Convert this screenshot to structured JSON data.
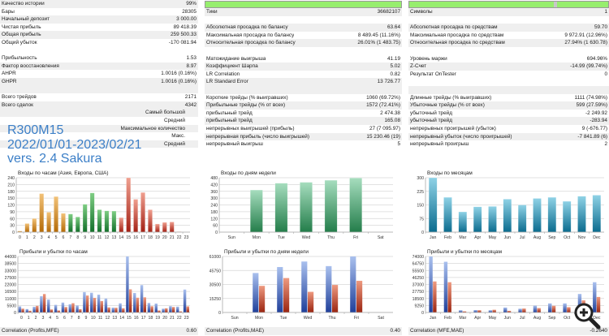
{
  "col1": {
    "rows_top": [
      {
        "label": "Качество истории",
        "value": "99%"
      },
      {
        "label": "Бары",
        "value": "28305"
      },
      {
        "label": "Начальный депозит",
        "value": "3 000.00"
      },
      {
        "label": "Чистая прибыль",
        "value": "89 418.39"
      },
      {
        "label": "Общая прибыль",
        "value": "259 500.33"
      },
      {
        "label": "Общий убыток",
        "value": "-170 081.94"
      }
    ],
    "rows_mid": [
      {
        "label": "Прибыльность",
        "value": "1.53"
      },
      {
        "label": "Фактор восстановления",
        "value": "8.97"
      },
      {
        "label": "AHPR",
        "value": "1.0016 (0.16%)"
      },
      {
        "label": "GHPR",
        "value": "1.0016 (0.16%)"
      }
    ],
    "rows_trades": [
      {
        "label": "Всего трейдов",
        "value": "2171"
      },
      {
        "label": "Всего сделок",
        "value": "4342"
      }
    ],
    "rows_right": [
      {
        "label": "Самый большой",
        "value": ""
      },
      {
        "label": "Средний",
        "value": ""
      },
      {
        "label": "Максимальное количество",
        "value": ""
      },
      {
        "label": "Макс.",
        "value": ""
      },
      {
        "label": "Средний",
        "value": ""
      }
    ]
  },
  "col2": {
    "history_quality_progress": 1.0,
    "rows_top": [
      {
        "label": "Тики",
        "value": "36682107"
      }
    ],
    "rows_dd": [
      {
        "label": "Абсолютная просадка по балансу",
        "value": "63.64"
      },
      {
        "label": "Максимальная просадка по балансу",
        "value": "8 489.45 (11.16%)"
      },
      {
        "label": "Относительная просадка по балансу",
        "value": "26.01% (1 483.75)"
      }
    ],
    "rows_mid": [
      {
        "label": "Матожидание выигрыша",
        "value": "41.19"
      },
      {
        "label": "Коэффициент Шарпа",
        "value": "5.02"
      },
      {
        "label": "LR Correlation",
        "value": "0.82"
      },
      {
        "label": "LR Standard Error",
        "value": "13 726.77"
      }
    ],
    "rows_trades": [
      {
        "label": "Короткие трейды (% выигравших)",
        "value": "1060 (69.72%)"
      },
      {
        "label": "Прибыльные трейды (% от всех)",
        "value": "1572 (72.41%)"
      },
      {
        "label": "прибыльный трейд",
        "value": "2 474.38"
      },
      {
        "label": "прибыльный трейд",
        "value": "165.08"
      },
      {
        "label": "непрерывных выигрышей (прибыль)",
        "value": "27 (7 095.97)"
      },
      {
        "label": "непрерывная прибыль (число выигрышей)",
        "value": "15 230.46 (19)"
      },
      {
        "label": "непрерывный выигрыш",
        "value": "5"
      }
    ]
  },
  "col3": {
    "rows_top": [
      {
        "label": "Символы",
        "value": "1"
      }
    ],
    "rows_dd": [
      {
        "label": "Абсолютная просадка по средствам",
        "value": "59.70"
      },
      {
        "label": "Максимальная просадка по средствам",
        "value": "9 972.91 (12.96%)"
      },
      {
        "label": "Относительная просадка по средствам",
        "value": "27.94% (1 630.78)"
      }
    ],
    "rows_mid": [
      {
        "label": "Уровень маржи",
        "value": "694.96%"
      },
      {
        "label": "Z-Счет",
        "value": "-14.99 (99.74%)"
      },
      {
        "label": "Результат OnTester",
        "value": "0"
      }
    ],
    "rows_trades": [
      {
        "label": "Длинные трейды (% выигравших)",
        "value": "1111 (74.98%)"
      },
      {
        "label": "Убыточные трейды (% от всех)",
        "value": "599 (27.59%)"
      },
      {
        "label": "убыточный трейд",
        "value": "-2 249.92"
      },
      {
        "label": "убыточный трейд",
        "value": "-283.94"
      },
      {
        "label": "непрерывных проигрышей (убыток)",
        "value": "9 (-676.77)"
      },
      {
        "label": "непрерывный убыток (число проигрышей)",
        "value": "-7 841.89 (6)"
      },
      {
        "label": "непрерывный проигрыш",
        "value": "2"
      }
    ]
  },
  "overlay": {
    "line1": "R300M15",
    "line2": "2022/01/01-2023/02/21",
    "line3": "vers. 2.4 Sakura"
  },
  "bottom": {
    "corr_profits_mfe_label": "Correlation (Profits,MFE)",
    "corr_profits_mfe_value": "0.60",
    "corr_profits_mae_label": "Correlation (Profits,MAE)",
    "corr_profits_mae_value": "0.40",
    "corr_mfe_mae_label": "Correlation (MFE,MAE)",
    "corr_mfe_mae_value": "-0.2640"
  },
  "colors": {
    "asia": "#d98c1c",
    "europe": "#2f9a3c",
    "usa": "#c0392b",
    "weekday": "#3aa56a",
    "month": "#2a8cb0",
    "profit": "#3a64c0",
    "loss": "#c0402a",
    "progress": "#97ee6e",
    "overlay_text": "#3c7fc7"
  },
  "chart_data": [
    {
      "type": "bar",
      "id": "entries-hours",
      "title": "Входы по часам (Азия, Европа, США)",
      "categories": [
        "0",
        "1",
        "2",
        "3",
        "4",
        "5",
        "6",
        "7",
        "8",
        "9",
        "10",
        "11",
        "12",
        "13",
        "14",
        "15",
        "16",
        "17",
        "18",
        "19",
        "20",
        "21",
        "22",
        "23"
      ],
      "values": [
        5,
        38,
        60,
        170,
        88,
        157,
        83,
        80,
        67,
        123,
        173,
        99,
        94,
        93,
        64,
        240,
        145,
        175,
        99,
        36,
        43,
        45,
        2,
        0
      ],
      "groups": [
        "asia",
        "asia",
        "asia",
        "asia",
        "asia",
        "asia",
        "asia",
        "europe",
        "europe",
        "europe",
        "europe",
        "europe",
        "europe",
        "europe",
        "usa",
        "usa",
        "usa",
        "usa",
        "usa",
        "usa",
        "usa",
        "usa",
        "usa",
        "usa"
      ],
      "yticks": [
        0,
        30,
        60,
        90,
        120,
        150,
        180,
        210,
        240
      ],
      "ylim": [
        0,
        240
      ]
    },
    {
      "type": "bar",
      "id": "entries-weekdays",
      "title": "Входы по дням недели",
      "categories": [
        "Sun",
        "Mon",
        "Tue",
        "Wed",
        "Thu",
        "Fri",
        "Sat"
      ],
      "values": [
        0,
        372,
        432,
        440,
        458,
        478,
        0
      ],
      "yticks": [
        0,
        60,
        120,
        180,
        240,
        300,
        360,
        420,
        480
      ],
      "ylim": [
        0,
        480
      ]
    },
    {
      "type": "bar",
      "id": "entries-months",
      "title": "Входы по месяцам",
      "categories": [
        "Jan",
        "Feb",
        "Mar",
        "Apr",
        "May",
        "Jun",
        "Jul",
        "Aug",
        "Sep",
        "Oct",
        "Nov",
        "Dec"
      ],
      "values": [
        300,
        192,
        112,
        140,
        142,
        182,
        150,
        186,
        192,
        170,
        198,
        204
      ],
      "yticks": [
        0,
        75,
        150,
        225,
        300
      ],
      "ylim": [
        0,
        300
      ]
    },
    {
      "type": "bar",
      "id": "pl-hours",
      "title": "Прибыли и убытки по часам",
      "categories": [
        "0",
        "1",
        "2",
        "3",
        "4",
        "5",
        "6",
        "7",
        "8",
        "9",
        "10",
        "11",
        "12",
        "13",
        "14",
        "15",
        "16",
        "17",
        "18",
        "19",
        "20",
        "21",
        "22",
        "23"
      ],
      "series": [
        {
          "name": "profit",
          "values": [
            4800,
            2700,
            4500,
            12800,
            10200,
            6000,
            7800,
            6500,
            5500,
            16000,
            15500,
            14000,
            11000,
            3800,
            7200,
            44000,
            15300,
            21500,
            7500,
            7000,
            3000,
            5000,
            4600,
            18000
          ]
        },
        {
          "name": "loss",
          "values": [
            3000,
            1400,
            5200,
            14500,
            2400,
            1600,
            4300,
            7300,
            2600,
            13300,
            11500,
            9000,
            4000,
            3700,
            3300,
            18200,
            11600,
            11900,
            4900,
            1600,
            3300,
            4300,
            900,
            4800
          ]
        }
      ],
      "yticks": [
        0,
        5500,
        11000,
        16500,
        22000,
        27500,
        33000,
        38500,
        44000
      ],
      "ylim": [
        0,
        44000
      ]
    },
    {
      "type": "bar",
      "id": "pl-weekdays",
      "title": "Прибыли и убытки по дням недели",
      "categories": [
        "Sun",
        "Mon",
        "Tue",
        "Wed",
        "Thu",
        "Fri",
        "Sat"
      ],
      "series": [
        {
          "name": "profit",
          "values": [
            0,
            43000,
            49500,
            55500,
            50500,
            61000,
            0
          ]
        },
        {
          "name": "loss",
          "values": [
            0,
            29000,
            37500,
            22500,
            30000,
            34500,
            0
          ]
        }
      ],
      "yticks": [
        0,
        15250,
        30500,
        45750,
        61000
      ],
      "ylim": [
        0,
        61000
      ]
    },
    {
      "type": "bar",
      "id": "pl-months",
      "title": "Прибыли и убытки по месяцам",
      "categories": [
        "Jan",
        "Feb",
        "Mar",
        "Apr",
        "May",
        "Jun",
        "Jul",
        "Aug",
        "Sep",
        "Oct",
        "Nov",
        "Dec"
      ],
      "series": [
        {
          "name": "profit",
          "values": [
            74000,
            67000,
            3000,
            3200,
            3000,
            6500,
            5000,
            9000,
            12000,
            12000,
            24500,
            40000
          ]
        },
        {
          "name": "loss",
          "values": [
            41000,
            40000,
            1500,
            3000,
            3600,
            2200,
            5200,
            5800,
            8800,
            7000,
            16000,
            20500
          ]
        }
      ],
      "yticks": [
        0,
        9250,
        18500,
        27750,
        37000,
        46250,
        55500,
        64750,
        74000
      ],
      "ylim": [
        0,
        74000
      ]
    }
  ]
}
